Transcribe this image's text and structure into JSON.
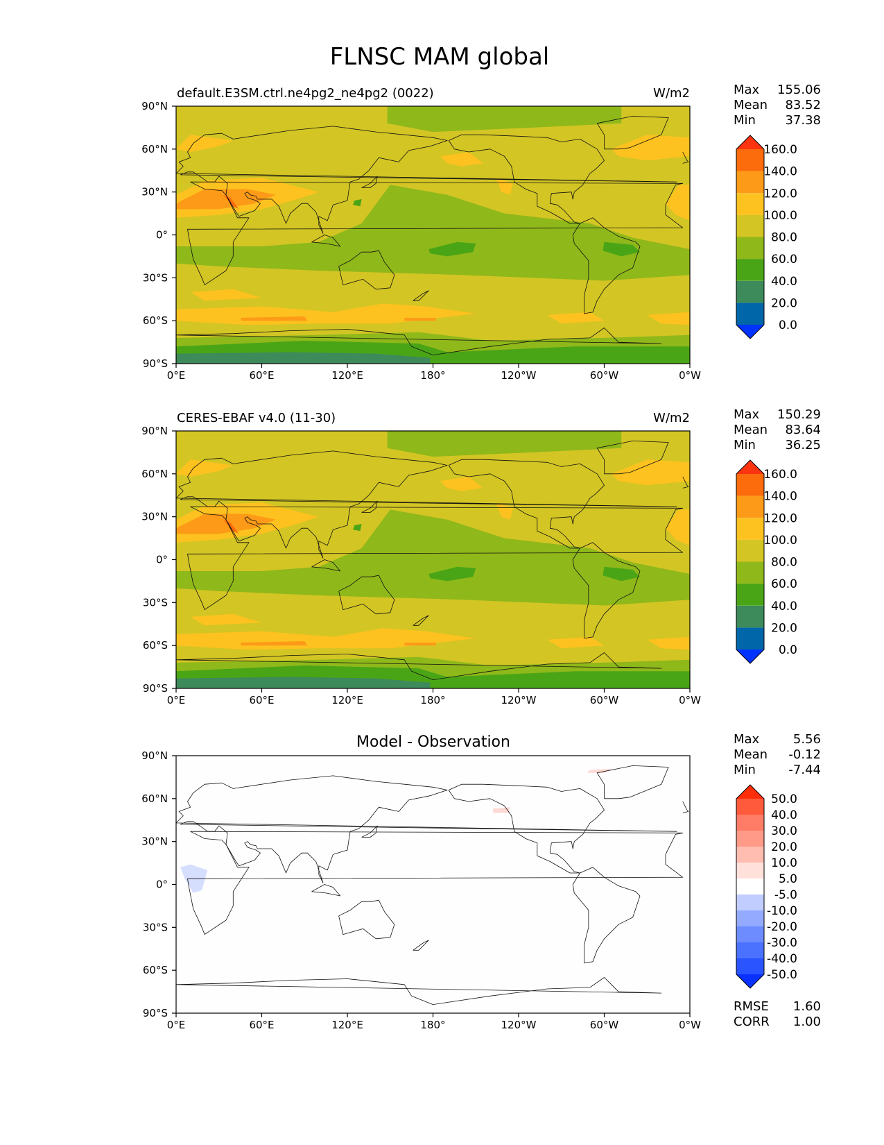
{
  "figure_title": "FLNSC MAM global",
  "lon_ticks": [
    "0°E",
    "60°E",
    "120°E",
    "180°",
    "120°W",
    "60°W",
    "0°W"
  ],
  "lat_ticks": [
    "90°N",
    "60°N",
    "30°N",
    "0°",
    "30°S",
    "60°S",
    "90°S"
  ],
  "panels": [
    {
      "title_left": "default.E3SM.ctrl.ne4pg2_ne4pg2 (0022)",
      "title_center": "",
      "units": "W/m2",
      "stats": [
        {
          "label": "Max",
          "value": "155.06"
        },
        {
          "label": "Mean",
          "value": "83.52"
        },
        {
          "label": "Min",
          "value": "37.38"
        }
      ],
      "colorbar": {
        "colors": [
          "#0033ff",
          "#0066aa",
          "#3d8a5a",
          "#4aa516",
          "#8fb81a",
          "#d3c524",
          "#fdc21f",
          "#fd9a18",
          "#fd6c0c",
          "#fd3410"
        ],
        "labels": [
          "0.0",
          "20.0",
          "40.0",
          "60.0",
          "80.0",
          "100.0",
          "120.0",
          "140.0",
          "160.0"
        ]
      }
    },
    {
      "title_left": "CERES-EBAF v4.0 (11-30)",
      "title_center": "",
      "units": "W/m2",
      "stats": [
        {
          "label": "Max",
          "value": "150.29"
        },
        {
          "label": "Mean",
          "value": "83.64"
        },
        {
          "label": "Min",
          "value": "36.25"
        }
      ],
      "colorbar": {
        "colors": [
          "#0033ff",
          "#0066aa",
          "#3d8a5a",
          "#4aa516",
          "#8fb81a",
          "#d3c524",
          "#fdc21f",
          "#fd9a18",
          "#fd6c0c",
          "#fd3410"
        ],
        "labels": [
          "0.0",
          "20.0",
          "40.0",
          "60.0",
          "80.0",
          "100.0",
          "120.0",
          "140.0",
          "160.0"
        ]
      }
    },
    {
      "title_left": "",
      "title_center": "Model - Observation",
      "units": "",
      "stats": [
        {
          "label": "Max",
          "value": "5.56"
        },
        {
          "label": "Mean",
          "value": "-0.12"
        },
        {
          "label": "Min",
          "value": "-7.44"
        }
      ],
      "colorbar": {
        "colors": [
          "#0a32ff",
          "#2a54ff",
          "#4a72ff",
          "#6c8cff",
          "#93aaff",
          "#c2cdff",
          "#ffffff",
          "#ffe0da",
          "#ffbcb0",
          "#ff9a88",
          "#ff7c66",
          "#ff5a3c",
          "#ff2e0a"
        ],
        "labels": [
          "-50.0",
          "-40.0",
          "-30.0",
          "-20.0",
          "-10.0",
          "-5.0",
          "5.0",
          "10.0",
          "20.0",
          "30.0",
          "40.0",
          "50.0"
        ]
      },
      "skill": [
        {
          "label": "RMSE",
          "value": "1.60"
        },
        {
          "label": "CORR",
          "value": "1.00"
        }
      ]
    }
  ],
  "field_palette": {
    "land_default": "#d3c524",
    "band_green": "#8fb81a",
    "deep_green": "#4aa516",
    "antarctic_teal": "#3d8a5a",
    "orange_light": "#fdc21f",
    "orange": "#fd9a18",
    "orange_dark": "#fd6c0c",
    "diff_neutral": "#fefefe",
    "diff_blue": "#d6defd",
    "diff_red": "#fddad4"
  }
}
